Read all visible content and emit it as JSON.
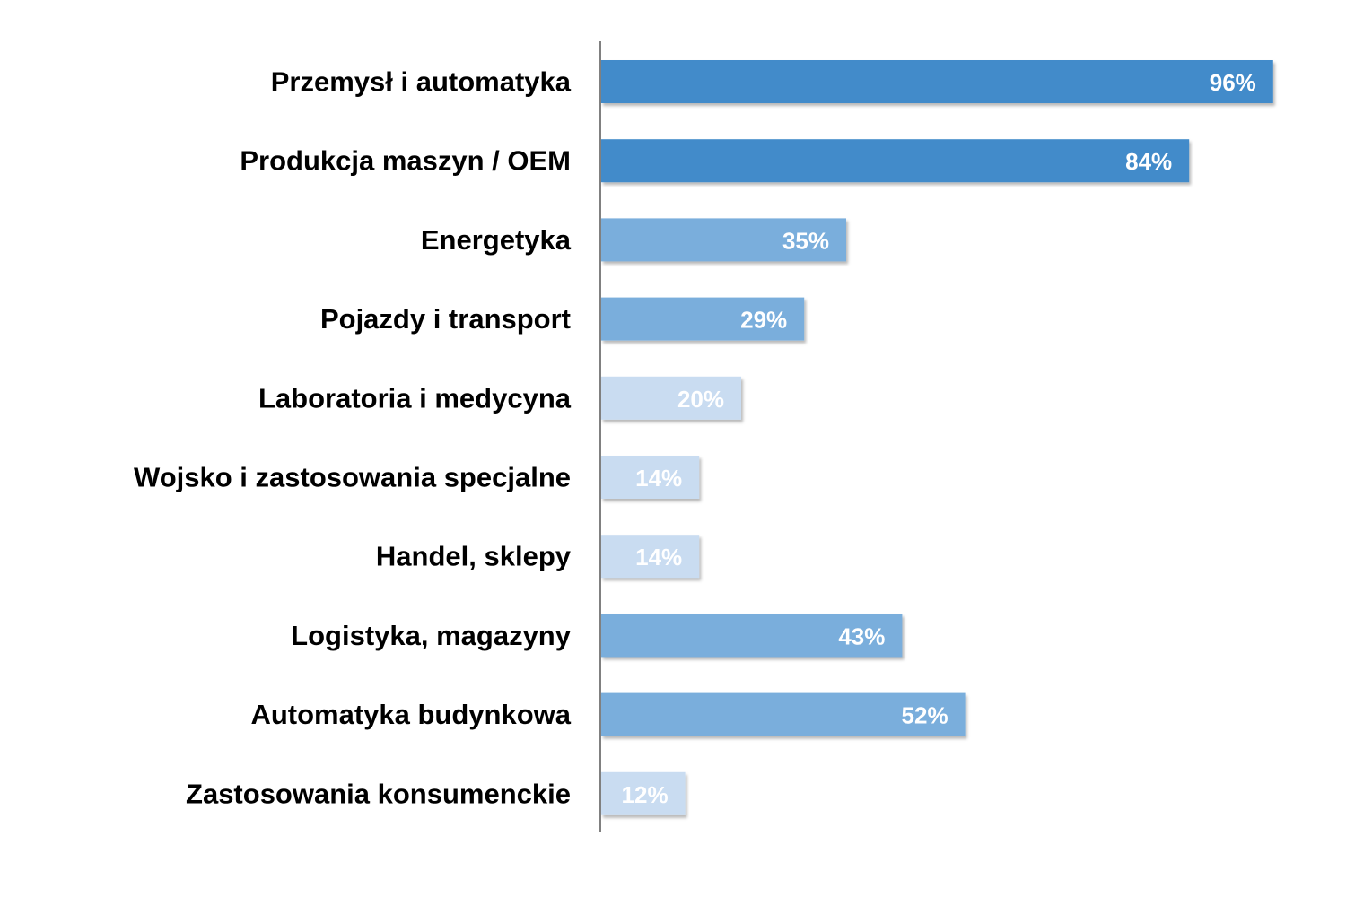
{
  "chart_data": {
    "type": "bar",
    "orientation": "horizontal",
    "categories": [
      "Przemysł i automatyka",
      "Produkcja maszyn / OEM",
      "Energetyka",
      "Pojazdy i transport",
      "Laboratoria i medycyna",
      "Wojsko i zastosowania specjalne",
      "Handel, sklepy",
      "Logistyka, magazyny",
      "Automatyka budynkowa",
      "Zastosowania konsumenckie"
    ],
    "values": [
      96,
      84,
      35,
      29,
      20,
      14,
      14,
      43,
      52,
      12
    ],
    "value_labels": [
      "96%",
      "84%",
      "35%",
      "29%",
      "20%",
      "14%",
      "14%",
      "43%",
      "52%",
      "12%"
    ],
    "xlim": [
      0,
      100
    ],
    "grid": false,
    "colors": {
      "high": "#428BCA",
      "mid": "#7AAEDC",
      "low": "#C9DCF1",
      "axis": "#808080"
    }
  }
}
